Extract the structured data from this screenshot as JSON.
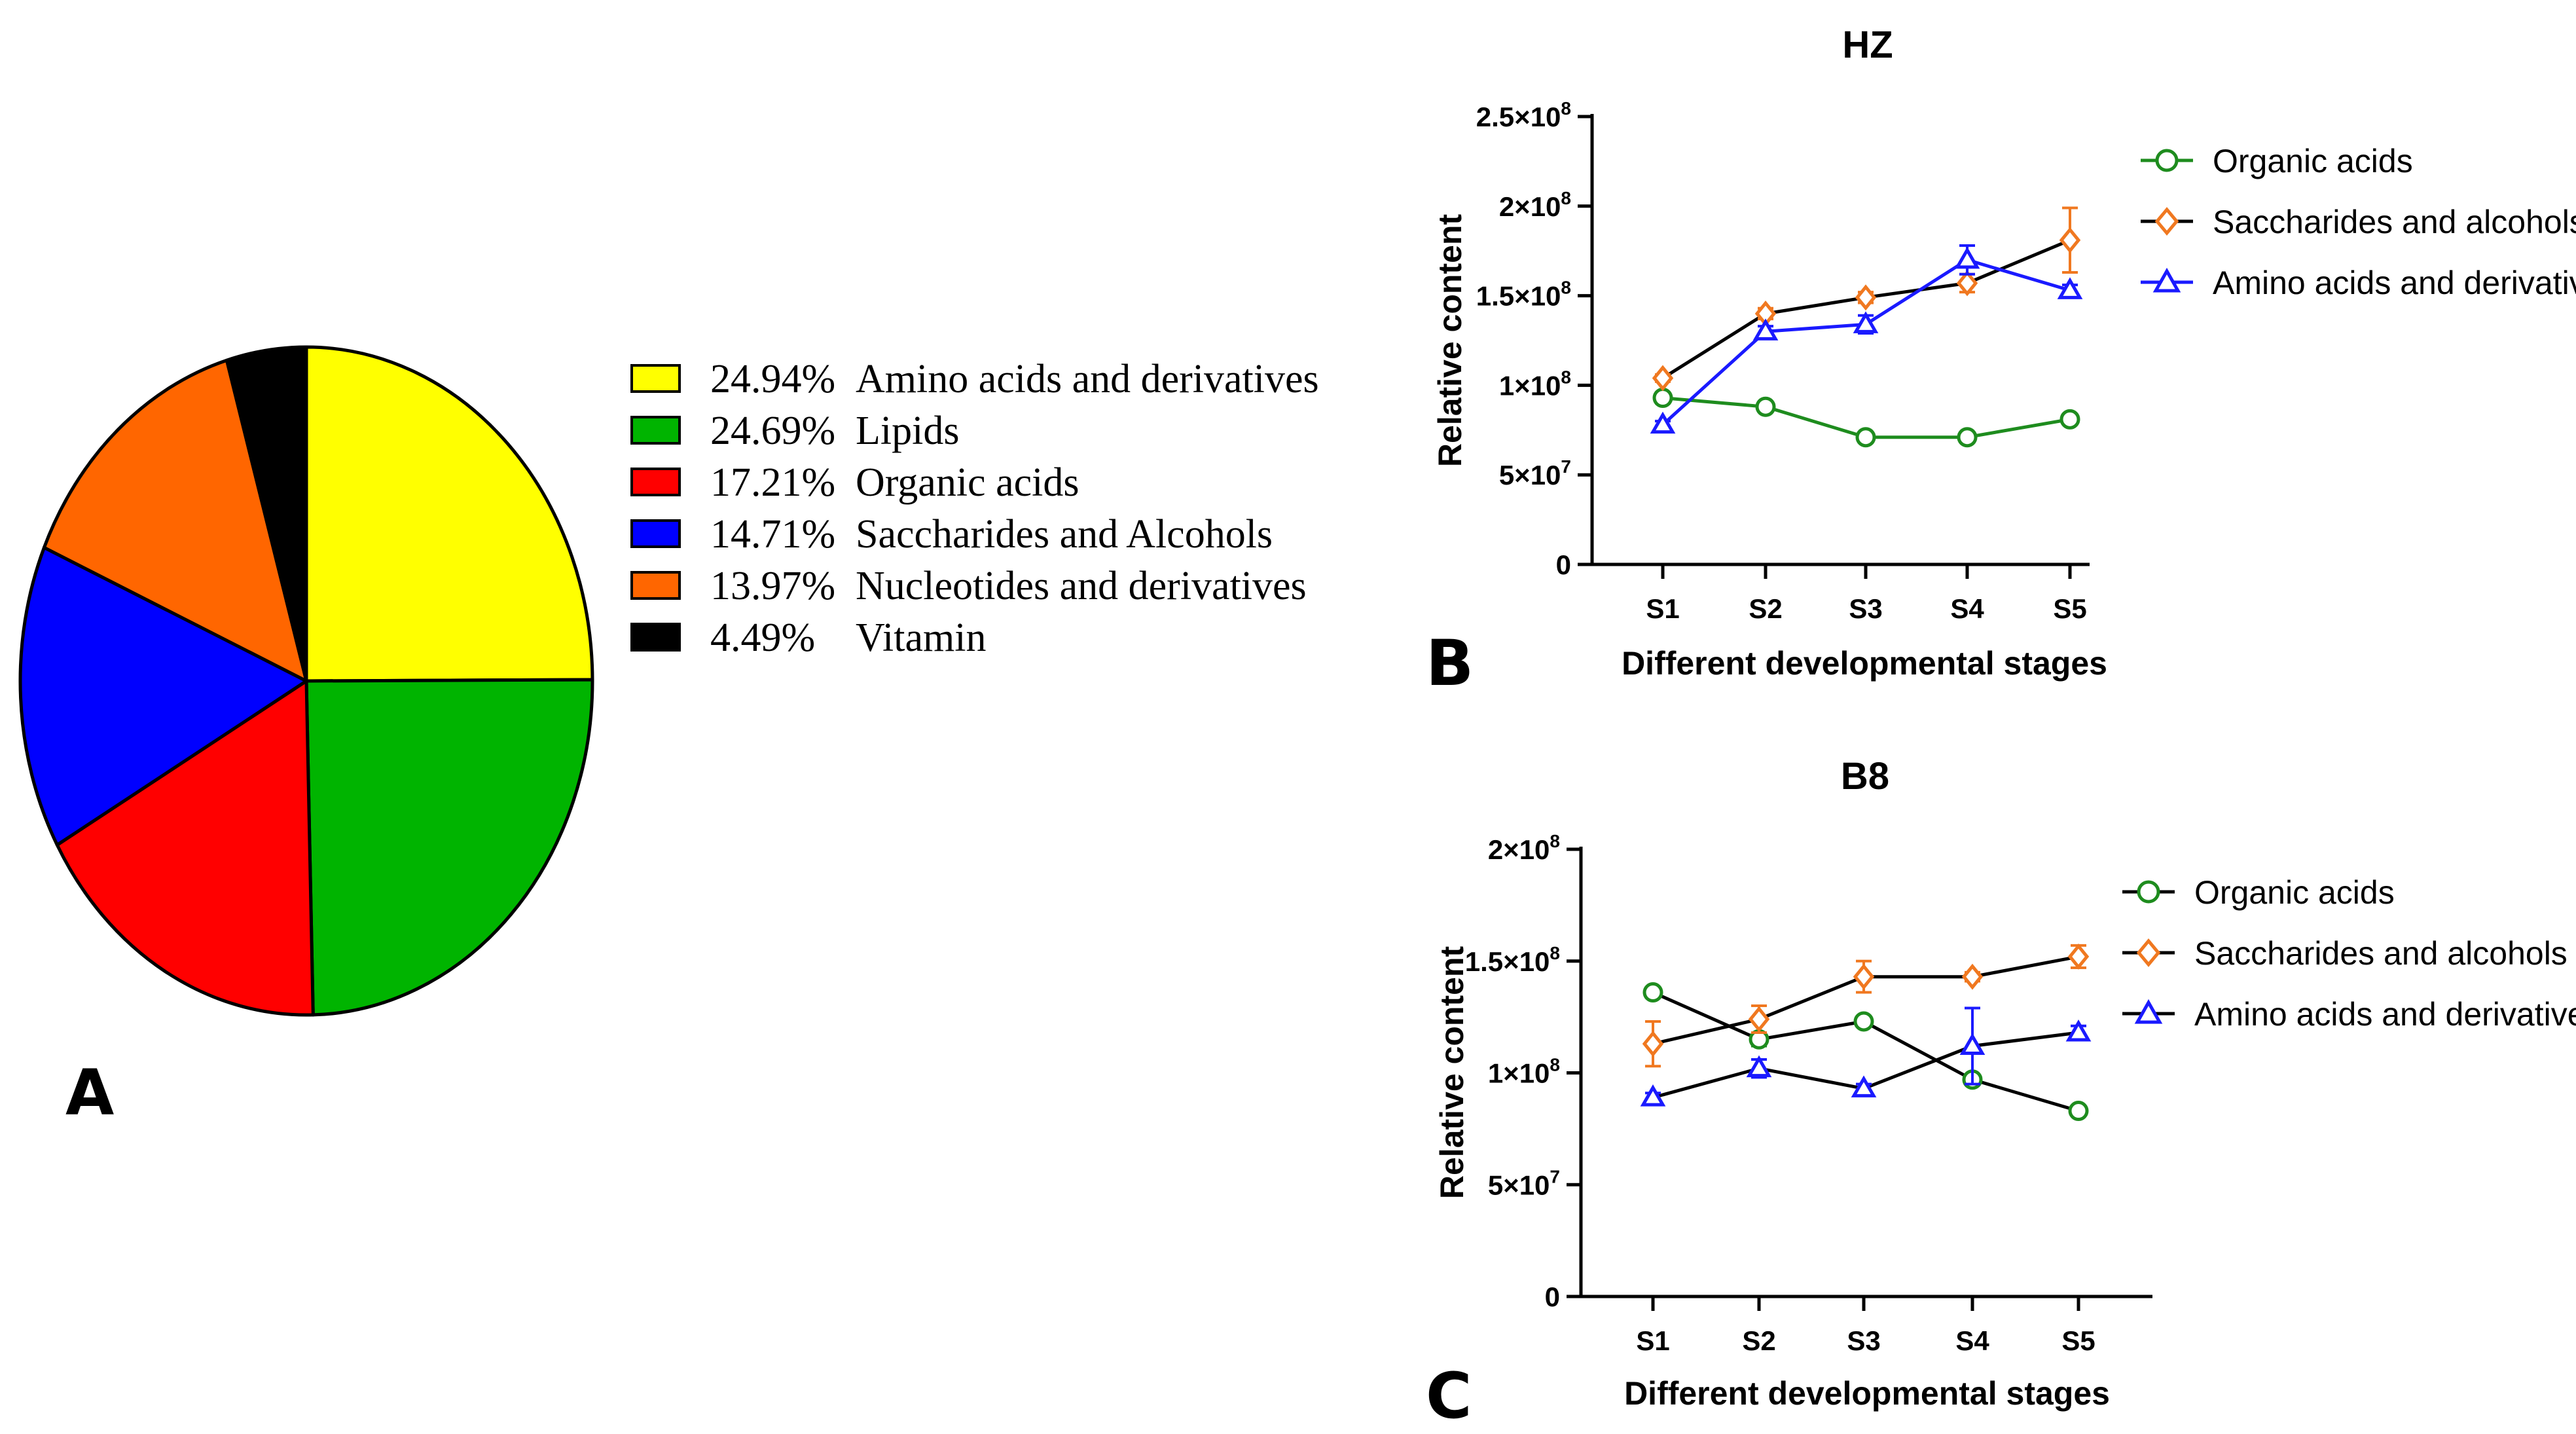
{
  "panels": {
    "a": "A",
    "b": "B",
    "c": "C"
  },
  "chart_data": [
    {
      "id": "A",
      "type": "pie",
      "labels": [
        "Amino acids and derivatives",
        "Lipids",
        "Organic acids",
        "Saccharides and Alcohols",
        "Nucleotides and derivatives",
        "Vitamin"
      ],
      "values": [
        24.94,
        24.69,
        17.21,
        14.71,
        13.97,
        4.49
      ],
      "value_labels": [
        "24.94%",
        "24.69%",
        "17.21%",
        "14.71%",
        "13.97%",
        "4.49%"
      ],
      "colors": [
        "#ffff00",
        "#00b400",
        "#ff0000",
        "#0000ff",
        "#ff6600",
        "#000000"
      ],
      "legend_position": "right"
    },
    {
      "id": "B",
      "type": "line",
      "title": "HZ",
      "xlabel": "Different developmental stages",
      "ylabel": "Relative content",
      "categories": [
        "S1",
        "S2",
        "S3",
        "S4",
        "S5"
      ],
      "ylim": [
        0,
        250000000
      ],
      "yticks": [
        0,
        50000000,
        100000000,
        150000000,
        200000000,
        250000000
      ],
      "ytick_labels": [
        {
          "m": "0",
          "e": ""
        },
        {
          "m": "5×10",
          "e": "7"
        },
        {
          "m": "1×10",
          "e": "8"
        },
        {
          "m": "1.5×10",
          "e": "8"
        },
        {
          "m": "2×10",
          "e": "8"
        },
        {
          "m": "2.5×10",
          "e": "8"
        }
      ],
      "series": [
        {
          "name": "Organic acids",
          "marker": "circle",
          "color": "#1e8c1e",
          "line_color": "#1e8c1e",
          "values": [
            93000000,
            88000000,
            71000000,
            71000000,
            81000000
          ],
          "errors": [
            3000000,
            2000000,
            2000000,
            2000000,
            2000000
          ]
        },
        {
          "name": "Saccharides and alcohols",
          "marker": "diamond",
          "color": "#f07820",
          "line_color": "#000000",
          "values": [
            104000000,
            140000000,
            149000000,
            157000000,
            181000000
          ],
          "errors": [
            2000000,
            3000000,
            3000000,
            5000000,
            18000000
          ]
        },
        {
          "name": "Amino acids and derivatives",
          "marker": "triangle",
          "color": "#1a1aff",
          "line_color": "#1a1aff",
          "values": [
            78000000,
            130000000,
            134000000,
            170000000,
            153000000
          ],
          "errors": [
            2000000,
            3000000,
            5000000,
            8000000,
            3000000
          ]
        }
      ],
      "legend_position": "right"
    },
    {
      "id": "C",
      "type": "line",
      "title": "B8",
      "xlabel": "Different developmental stages",
      "ylabel": "Relative content",
      "categories": [
        "S1",
        "S2",
        "S3",
        "S4",
        "S5"
      ],
      "ylim": [
        0,
        200000000
      ],
      "yticks": [
        0,
        50000000,
        100000000,
        150000000,
        200000000
      ],
      "ytick_labels": [
        {
          "m": "0",
          "e": ""
        },
        {
          "m": "5×10",
          "e": "7"
        },
        {
          "m": "1×10",
          "e": "8"
        },
        {
          "m": "1.5×10",
          "e": "8"
        },
        {
          "m": "2×10",
          "e": "8"
        }
      ],
      "series": [
        {
          "name": "Organic acids",
          "marker": "circle",
          "color": "#1e8c1e",
          "line_color": "#000000",
          "values": [
            136000000,
            115000000,
            123000000,
            97000000,
            83000000
          ],
          "errors": [
            2000000,
            3000000,
            2000000,
            2000000,
            2000000
          ]
        },
        {
          "name": "Saccharides and alcohols",
          "marker": "diamond",
          "color": "#f07820",
          "line_color": "#000000",
          "values": [
            113000000,
            124000000,
            143000000,
            143000000,
            152000000
          ],
          "errors": [
            10000000,
            6000000,
            7000000,
            2000000,
            5000000
          ]
        },
        {
          "name": "Amino acids and derivatives",
          "marker": "triangle",
          "color": "#1a1aff",
          "line_color": "#000000",
          "values": [
            89000000,
            102000000,
            93000000,
            112000000,
            118000000
          ],
          "errors": [
            2000000,
            4000000,
            2000000,
            17000000,
            3000000
          ]
        }
      ],
      "legend_position": "right"
    }
  ]
}
